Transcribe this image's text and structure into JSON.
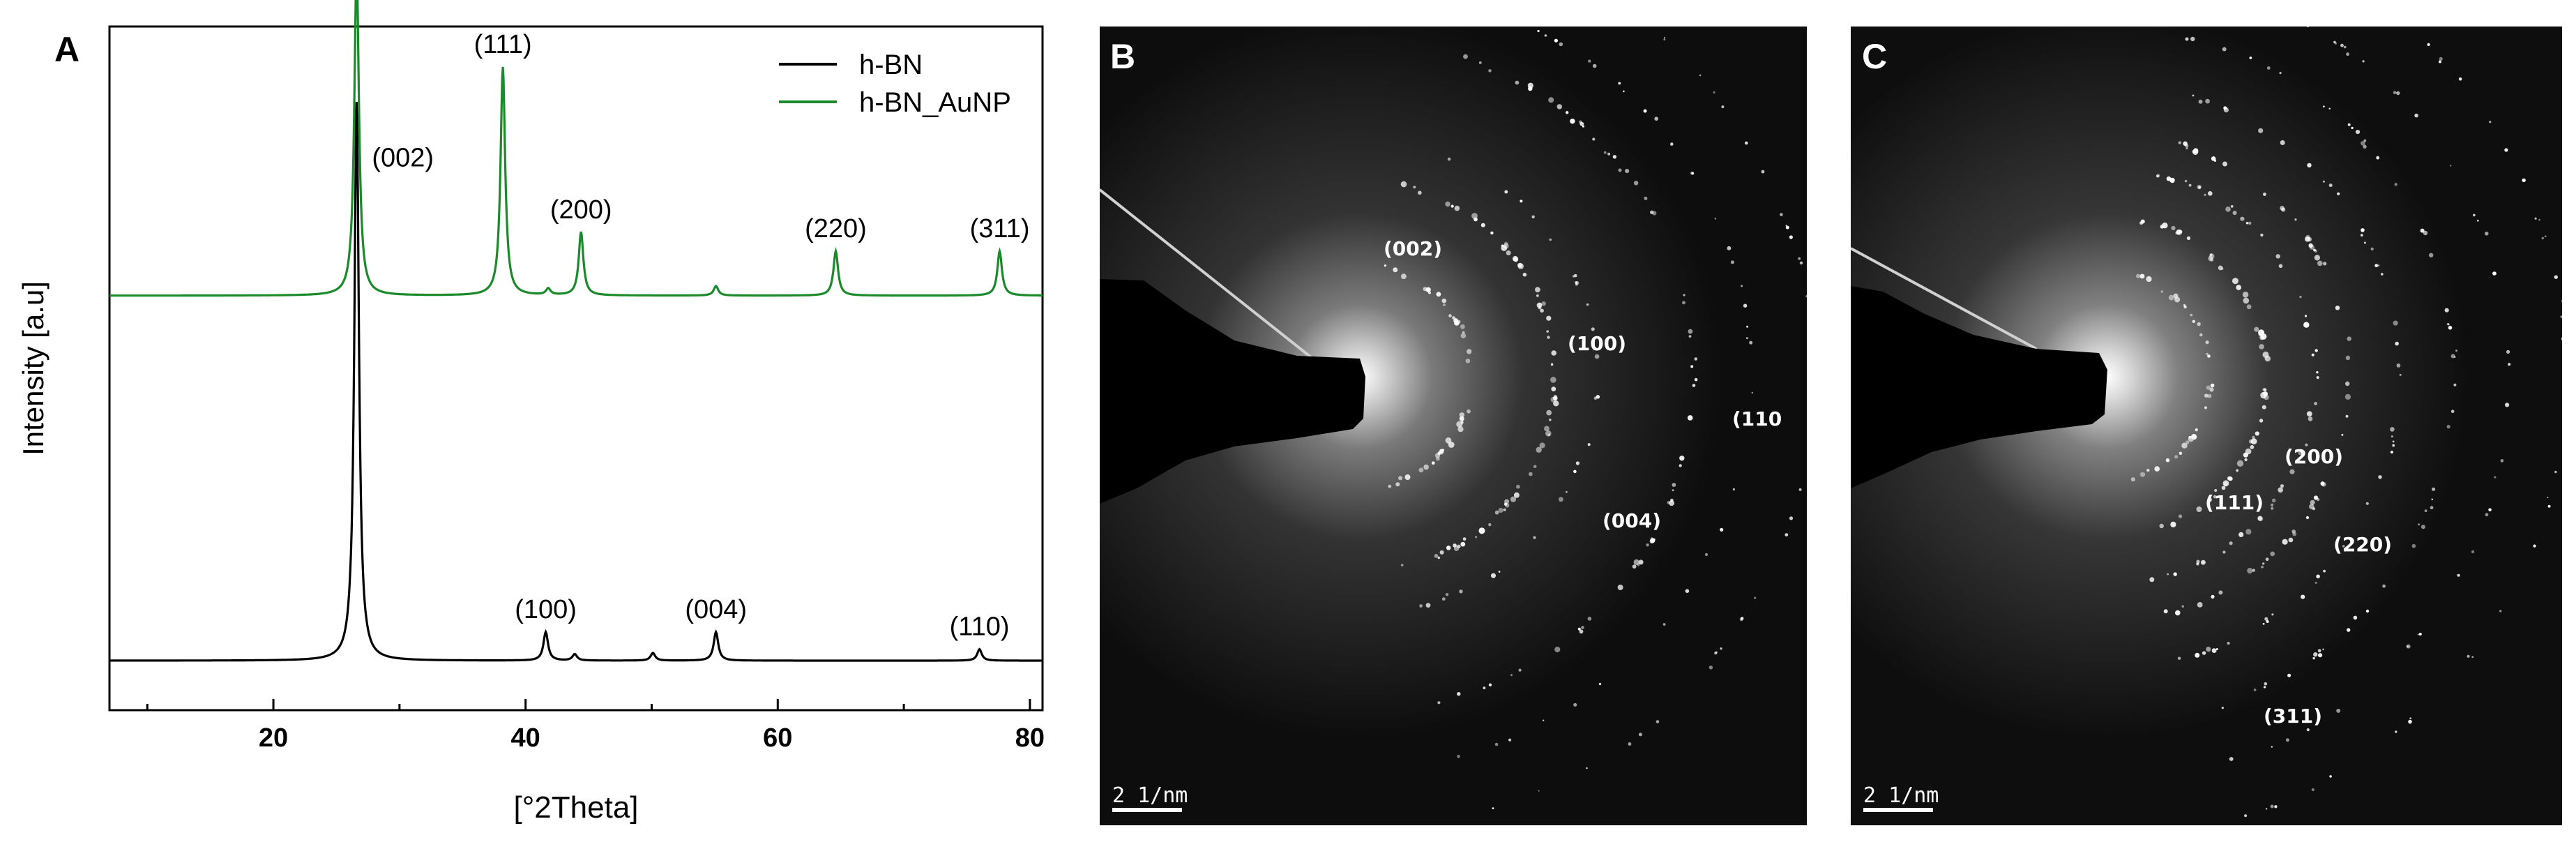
{
  "panels": {
    "a": {
      "letter": "A"
    },
    "b": {
      "letter": "B"
    },
    "c": {
      "letter": "C"
    }
  },
  "chart_data": {
    "type": "line",
    "x_range": [
      7,
      81
    ],
    "y_axis_label": "Intensity [a.u]",
    "x_axis_label": "[°2Theta]",
    "x_ticks": [
      20,
      40,
      60,
      80
    ],
    "y_tick_labels_shown": false,
    "legend": {
      "placement": "top-right",
      "entries": [
        "h-BN",
        "h-BN_AuNP"
      ]
    },
    "series": [
      {
        "name": "h-BN",
        "color": "#000000",
        "baseline": 0.045,
        "peaks": [
          {
            "x": 26.6,
            "height": 0.88,
            "label": "(002)"
          },
          {
            "x": 41.6,
            "height": 0.045,
            "label": "(100)"
          },
          {
            "x": 43.9,
            "height": 0.01,
            "label": ""
          },
          {
            "x": 50.1,
            "height": 0.012,
            "label": ""
          },
          {
            "x": 55.1,
            "height": 0.045,
            "label": "(004)"
          },
          {
            "x": 76.0,
            "height": 0.018,
            "label": "(110)"
          }
        ]
      },
      {
        "name": "h-BN_AuNP",
        "color": "#1a8a2a",
        "baseline": 0.62,
        "peaks": [
          {
            "x": 26.6,
            "height": 0.52,
            "label": ""
          },
          {
            "x": 38.2,
            "height": 0.36,
            "label": "(111)"
          },
          {
            "x": 41.8,
            "height": 0.01,
            "label": ""
          },
          {
            "x": 44.4,
            "height": 0.1,
            "label": "(200)"
          },
          {
            "x": 55.1,
            "height": 0.015,
            "label": ""
          },
          {
            "x": 64.6,
            "height": 0.07,
            "label": "(220)"
          },
          {
            "x": 77.6,
            "height": 0.07,
            "label": "(311)"
          }
        ]
      }
    ]
  },
  "saed_b": {
    "labels": [
      "(002)",
      "(100)",
      "(110",
      "(004)"
    ],
    "scale_bar": "2 1/nm"
  },
  "saed_c": {
    "labels": [
      "(200)",
      "(111)",
      "(220)",
      "(311)"
    ],
    "scale_bar": "2 1/nm"
  }
}
